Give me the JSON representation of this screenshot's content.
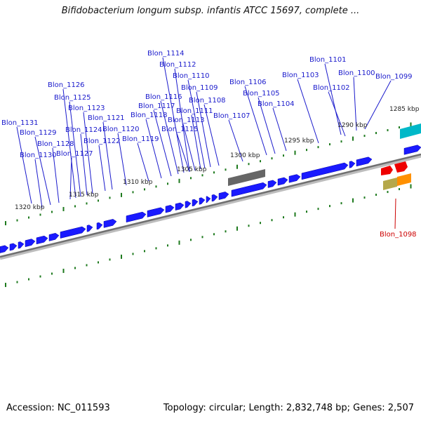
{
  "title": "Bifidobacterium longum subsp. infantis ATCC 15697, complete ...",
  "footer": {
    "accession": "Accession: NC_011593",
    "summary": "Topology: circular; Length: 2,832,748 bp; Genes: 2,507"
  },
  "colors": {
    "gene_forward": "#1a1aff",
    "gene_rna": "#666666",
    "gene_teal": "#00b8c8",
    "gene_red": "#ee0000",
    "gene_olive": "#b5a84a",
    "gene_orange": "#ff9000",
    "label_blue": "#1a1acc",
    "label_red": "#cc0000",
    "tick": "#1e7a1e",
    "backbone": "#777777"
  },
  "scale_labels": [
    {
      "text": "1285 kbp",
      "kbp": 1285
    },
    {
      "text": "1290 kbp",
      "kbp": 1290
    },
    {
      "text": "1295 kbp",
      "kbp": 1295
    },
    {
      "text": "1300 kbp",
      "kbp": 1300
    },
    {
      "text": "1305 kbp",
      "kbp": 1305
    },
    {
      "text": "1310 kbp",
      "kbp": 1310
    },
    {
      "text": "1315 kbp",
      "kbp": 1315
    },
    {
      "text": "1320 kbp",
      "kbp": 1320
    }
  ],
  "gene_labels": [
    "Blon_1131",
    "Blon_1130",
    "Blon_1129",
    "Blon_1128",
    "Blon_1127",
    "Blon_1126",
    "Blon_1125",
    "Blon_1124",
    "Blon_1123",
    "Blon_1122",
    "Blon_1121",
    "Blon_1120",
    "Blon_1119",
    "Blon_1118",
    "Blon_1117",
    "Blon_1116",
    "Blon_1115",
    "Blon_1114",
    "Blon_1113",
    "Blon_1112",
    "Blon_1111",
    "Blon_1110",
    "Blon_1109",
    "Blon_1108",
    "Blon_1107",
    "Blon_1106",
    "Blon_1105",
    "Blon_1104",
    "Blon_1103",
    "Blon_1102",
    "Blon_1101",
    "Blon_1100",
    "Blon_1099",
    "Blon_1098"
  ]
}
